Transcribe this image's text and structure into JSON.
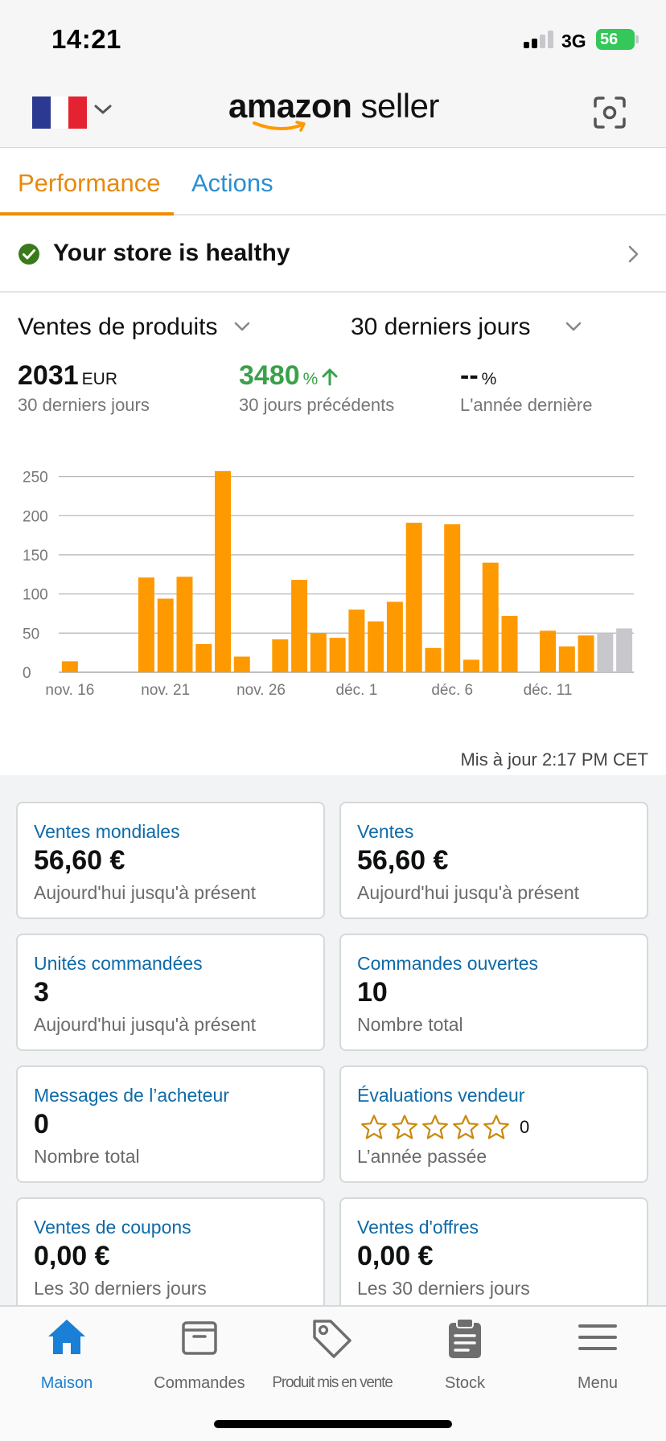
{
  "status_bar": {
    "time": "14:21",
    "network": "3G",
    "battery": "56"
  },
  "header": {
    "flag_colors": [
      "#2b3990",
      "#ffffff",
      "#e52231"
    ],
    "logo_bold": "amazon",
    "logo_light": " seller",
    "scan_icon": "scan-icon"
  },
  "tabs": [
    {
      "label": "Performance",
      "active": true
    },
    {
      "label": "Actions",
      "active": false
    }
  ],
  "health": {
    "text": "Your store is healthy"
  },
  "sales": {
    "metric_selector": "Ventes de produits",
    "period_selector": "30 derniers jours",
    "kpis": [
      {
        "value": "2031",
        "unit": "EUR",
        "sub": "30 derniers jours"
      },
      {
        "value": "3480",
        "unit": "%",
        "sub": "30 jours précédents"
      },
      {
        "value": "--",
        "unit": "%",
        "sub": "L'année dernière"
      }
    ],
    "updated": "Mis à jour 2:17 PM CET"
  },
  "chart_data": {
    "type": "bar",
    "x": [
      "nov. 16",
      "nov. 17",
      "nov. 18",
      "nov. 19",
      "nov. 20",
      "nov. 21",
      "nov. 22",
      "nov. 23",
      "nov. 24",
      "nov. 25",
      "nov. 26",
      "nov. 27",
      "nov. 28",
      "nov. 29",
      "nov. 30",
      "déc. 1",
      "déc. 2",
      "déc. 3",
      "déc. 4",
      "déc. 5",
      "déc. 6",
      "déc. 7",
      "déc. 8",
      "déc. 9",
      "déc. 10",
      "déc. 11",
      "déc. 12",
      "déc. 13",
      "déc. 14",
      "déc. 15"
    ],
    "values": [
      14,
      0,
      0,
      0,
      121,
      94,
      122,
      36,
      257,
      20,
      0,
      42,
      118,
      50,
      44,
      80,
      65,
      90,
      191,
      31,
      189,
      16,
      140,
      72,
      0,
      53,
      33,
      47,
      50,
      56
    ],
    "projected_last_n": 2,
    "tick_labels": [
      "nov. 16",
      "nov. 21",
      "nov. 26",
      "déc. 1",
      "déc. 6",
      "déc. 11"
    ],
    "y_ticks": [
      0,
      50,
      100,
      150,
      200,
      250
    ],
    "ylim": [
      0,
      265
    ],
    "colors": {
      "actual": "#ff9900",
      "projected": "#c8c8cc",
      "grid": "#b8b8b8"
    }
  },
  "cards": [
    {
      "title": "Ventes mondiales",
      "value": "56,60 €",
      "sub": "Aujourd'hui jusqu'à présent"
    },
    {
      "title": "Ventes",
      "value": "56,60 €",
      "sub": "Aujourd'hui jusqu'à présent"
    },
    {
      "title": "Unités commandées",
      "value": "3",
      "sub": "Aujourd'hui jusqu'à présent"
    },
    {
      "title": "Commandes ouvertes",
      "value": "10",
      "sub": "Nombre total"
    },
    {
      "title": "Messages de l’acheteur",
      "value": "0",
      "sub": "Nombre total"
    },
    {
      "title": "Évaluations vendeur",
      "rating": 0,
      "rating_count": "0",
      "sub": "L’année passée"
    },
    {
      "title": "Ventes de coupons",
      "value": "0,00 €",
      "sub": "Les 30 derniers jours"
    },
    {
      "title": "Ventes d'offres",
      "value": "0,00 €",
      "sub": "Les 30 derniers jours"
    }
  ],
  "bottom_nav": [
    {
      "label": "Maison",
      "icon": "home-icon",
      "active": true
    },
    {
      "label": "Commandes",
      "icon": "orders-box-icon",
      "active": false
    },
    {
      "label": "Produit mis en vente",
      "icon": "price-tag-icon",
      "active": false
    },
    {
      "label": "Stock",
      "icon": "clipboard-icon",
      "active": false
    },
    {
      "label": "Menu",
      "icon": "hamburger-menu-icon",
      "active": false
    }
  ],
  "accent_colors": {
    "tab_active": "#e8890c",
    "link": "#0e6aa8",
    "healthy": "#3b7a1b",
    "nav_active": "#1a7fd6"
  }
}
